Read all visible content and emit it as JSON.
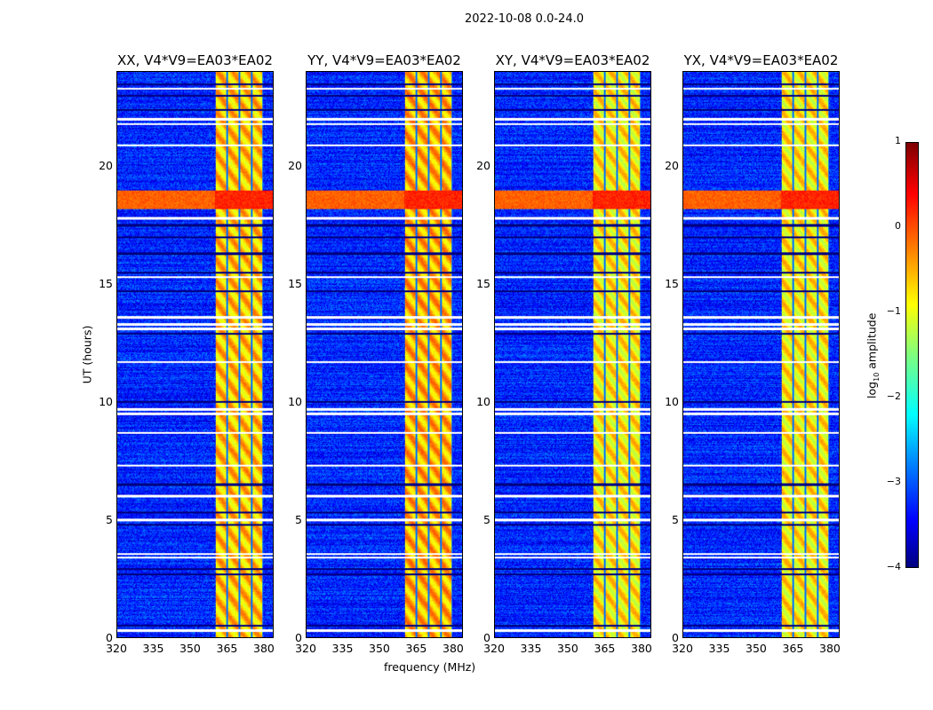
{
  "chart_data": {
    "type": "heatmap",
    "title": "2022-10-08 0.0-24.0",
    "xlabel": "frequency (MHz)",
    "ylabel": "UT (hours)",
    "xlim": [
      320,
      384
    ],
    "ylim": [
      0,
      24
    ],
    "xticks": [
      "320",
      "335",
      "350",
      "365",
      "380"
    ],
    "yticks": [
      "0",
      "5",
      "10",
      "15",
      "20"
    ],
    "panels": [
      {
        "title": "XX, V4*V9=EA03*EA02",
        "strong_band_hours": [
          18.2,
          19.0
        ],
        "band_level": -0.6
      },
      {
        "title": "YY, V4*V9=EA03*EA02",
        "strong_band_hours": [
          18.2,
          19.0
        ],
        "band_level": -0.5
      },
      {
        "title": "XY, V4*V9=EA03*EA02",
        "strong_band_hours": [
          18.2,
          19.0
        ],
        "band_level": -0.8
      },
      {
        "title": "YX, V4*V9=EA03*EA02",
        "strong_band_hours": [
          18.2,
          19.0
        ],
        "band_level": -0.8
      }
    ],
    "rfi_band_mhz": [
      360.4,
      380
    ],
    "dark_channels_mhz": [
      365,
      370,
      375,
      380
    ],
    "background_level": -3.2,
    "flagged_white_hours": [
      0.3,
      3.4,
      3.55,
      5.0,
      6.0,
      7.3,
      8.7,
      9.5,
      9.7,
      11.7,
      13.1,
      13.3,
      13.6,
      15.3,
      17.8,
      20.9,
      21.8,
      22.0,
      23.3
    ],
    "flagged_black_hours": [
      0.5,
      2.7,
      2.9,
      4.8,
      5.3,
      6.5,
      10.0,
      12.9,
      14.7,
      15.5,
      16.3,
      17.0,
      17.5,
      22.4,
      23.0,
      23.5
    ],
    "colorbar": {
      "label": "log10 amplitude",
      "range": [
        -4,
        1
      ],
      "ticks": [
        "1",
        "0",
        "−1",
        "−2",
        "−3",
        "−4"
      ],
      "colormap": "jet"
    }
  }
}
